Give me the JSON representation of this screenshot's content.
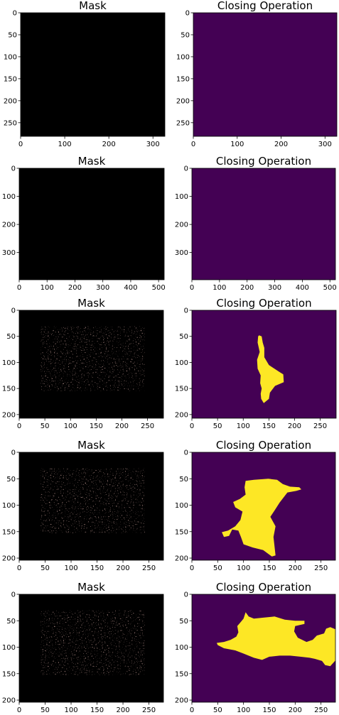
{
  "chart_data": [
    {
      "type": "heatmap",
      "title": "Mask",
      "image": "black-mask",
      "xticks": [
        0,
        100,
        200,
        300
      ],
      "yticks": [
        0,
        50,
        100,
        150,
        200,
        250
      ],
      "xlim": [
        0,
        327
      ],
      "ylim": [
        281,
        0
      ]
    },
    {
      "type": "heatmap",
      "title": "Closing Operation",
      "image": "empty",
      "xticks": [
        0,
        100,
        200,
        300
      ],
      "yticks": [
        0,
        50,
        100,
        150,
        200,
        250
      ],
      "xlim": [
        0,
        327
      ],
      "ylim": [
        281,
        0
      ],
      "colors": {
        "background": "#440154",
        "foreground": "#fde725"
      }
    },
    {
      "type": "heatmap",
      "title": "Mask",
      "image": "black-mask",
      "xticks": [
        0,
        100,
        200,
        300,
        400,
        500
      ],
      "yticks": [
        0,
        100,
        200,
        300
      ],
      "xlim": [
        0,
        520
      ],
      "ylim": [
        397,
        0
      ]
    },
    {
      "type": "heatmap",
      "title": "Closing Operation",
      "image": "empty",
      "xticks": [
        0,
        100,
        200,
        300,
        400,
        500
      ],
      "yticks": [
        0,
        100,
        200,
        300
      ],
      "xlim": [
        0,
        520
      ],
      "ylim": [
        397,
        0
      ],
      "colors": {
        "background": "#440154",
        "foreground": "#fde725"
      }
    },
    {
      "type": "heatmap",
      "title": "Mask",
      "image": "faint-speckle-mask",
      "xticks": [
        0,
        50,
        100,
        150,
        200,
        250
      ],
      "yticks": [
        0,
        50,
        100,
        150,
        200
      ],
      "xlim": [
        0,
        281
      ],
      "ylim": [
        207,
        0
      ]
    },
    {
      "type": "heatmap",
      "title": "Closing Operation",
      "image": "single-blob",
      "xticks": [
        0,
        50,
        100,
        150,
        200,
        250
      ],
      "yticks": [
        0,
        50,
        100,
        150,
        200
      ],
      "xlim": [
        0,
        281
      ],
      "ylim": [
        207,
        0
      ],
      "colors": {
        "background": "#440154",
        "foreground": "#fde725"
      },
      "region": [
        [
          131,
          48
        ],
        [
          136,
          50
        ],
        [
          138,
          62
        ],
        [
          141,
          72
        ],
        [
          141,
          90
        ],
        [
          150,
          105
        ],
        [
          170,
          118
        ],
        [
          178,
          123
        ],
        [
          179,
          138
        ],
        [
          162,
          145
        ],
        [
          152,
          158
        ],
        [
          150,
          170
        ],
        [
          140,
          178
        ],
        [
          135,
          170
        ],
        [
          134,
          160
        ],
        [
          136,
          150
        ],
        [
          133,
          140
        ],
        [
          134,
          125
        ],
        [
          128,
          112
        ],
        [
          127,
          95
        ],
        [
          132,
          80
        ],
        [
          128,
          62
        ],
        [
          129,
          50
        ]
      ]
    },
    {
      "type": "heatmap",
      "title": "Mask",
      "image": "faint-speckle-mask",
      "xticks": [
        0,
        50,
        100,
        150,
        200,
        250
      ],
      "yticks": [
        0,
        50,
        100,
        150,
        200
      ],
      "xlim": [
        0,
        278
      ],
      "ylim": [
        204,
        0
      ]
    },
    {
      "type": "heatmap",
      "title": "Closing Operation",
      "image": "branching-blob",
      "xticks": [
        0,
        50,
        100,
        150,
        200,
        250
      ],
      "yticks": [
        0,
        50,
        100,
        150,
        200
      ],
      "xlim": [
        0,
        278
      ],
      "ylim": [
        204,
        0
      ],
      "colors": {
        "background": "#440154",
        "foreground": "#fde725"
      },
      "region": [
        [
          104,
          54
        ],
        [
          120,
          52
        ],
        [
          148,
          50
        ],
        [
          165,
          52
        ],
        [
          176,
          60
        ],
        [
          190,
          65
        ],
        [
          208,
          66
        ],
        [
          212,
          70
        ],
        [
          202,
          73
        ],
        [
          185,
          76
        ],
        [
          170,
          95
        ],
        [
          160,
          110
        ],
        [
          152,
          122
        ],
        [
          162,
          140
        ],
        [
          158,
          160
        ],
        [
          160,
          178
        ],
        [
          162,
          195
        ],
        [
          155,
          197
        ],
        [
          138,
          185
        ],
        [
          118,
          180
        ],
        [
          100,
          174
        ],
        [
          95,
          160
        ],
        [
          90,
          148
        ],
        [
          78,
          146
        ],
        [
          72,
          158
        ],
        [
          62,
          160
        ],
        [
          58,
          151
        ],
        [
          70,
          148
        ],
        [
          84,
          140
        ],
        [
          94,
          128
        ],
        [
          98,
          112
        ],
        [
          84,
          104
        ],
        [
          80,
          94
        ],
        [
          93,
          88
        ],
        [
          104,
          80
        ],
        [
          102,
          66
        ]
      ]
    },
    {
      "type": "heatmap",
      "title": "Mask",
      "image": "faint-speckle-mask",
      "xticks": [
        0,
        50,
        100,
        150,
        200,
        250
      ],
      "yticks": [
        0,
        50,
        100,
        150,
        200
      ],
      "xlim": [
        0,
        278
      ],
      "ylim": [
        204,
        0
      ]
    },
    {
      "type": "heatmap",
      "title": "Closing Operation",
      "image": "elongated-blob",
      "xticks": [
        0,
        50,
        100,
        150,
        200,
        250
      ],
      "yticks": [
        0,
        50,
        100,
        150,
        200
      ],
      "xlim": [
        0,
        278
      ],
      "ylim": [
        204,
        0
      ],
      "colors": {
        "background": "#440154",
        "foreground": "#fde725"
      },
      "region": [
        [
          100,
          46
        ],
        [
          104,
          34
        ],
        [
          110,
          42
        ],
        [
          120,
          46
        ],
        [
          140,
          44
        ],
        [
          160,
          42
        ],
        [
          180,
          48
        ],
        [
          200,
          50
        ],
        [
          218,
          50
        ],
        [
          218,
          56
        ],
        [
          200,
          60
        ],
        [
          198,
          70
        ],
        [
          205,
          82
        ],
        [
          222,
          90
        ],
        [
          234,
          86
        ],
        [
          242,
          78
        ],
        [
          256,
          74
        ],
        [
          260,
          65
        ],
        [
          268,
          62
        ],
        [
          278,
          66
        ],
        [
          278,
          125
        ],
        [
          268,
          136
        ],
        [
          258,
          134
        ],
        [
          252,
          126
        ],
        [
          238,
          122
        ],
        [
          228,
          120
        ],
        [
          210,
          118
        ],
        [
          190,
          116
        ],
        [
          170,
          116
        ],
        [
          150,
          118
        ],
        [
          136,
          124
        ],
        [
          120,
          120
        ],
        [
          100,
          112
        ],
        [
          84,
          106
        ],
        [
          62,
          102
        ],
        [
          50,
          96
        ],
        [
          48,
          92
        ],
        [
          62,
          90
        ],
        [
          75,
          86
        ],
        [
          86,
          80
        ],
        [
          90,
          72
        ],
        [
          88,
          60
        ],
        [
          95,
          52
        ]
      ]
    }
  ]
}
